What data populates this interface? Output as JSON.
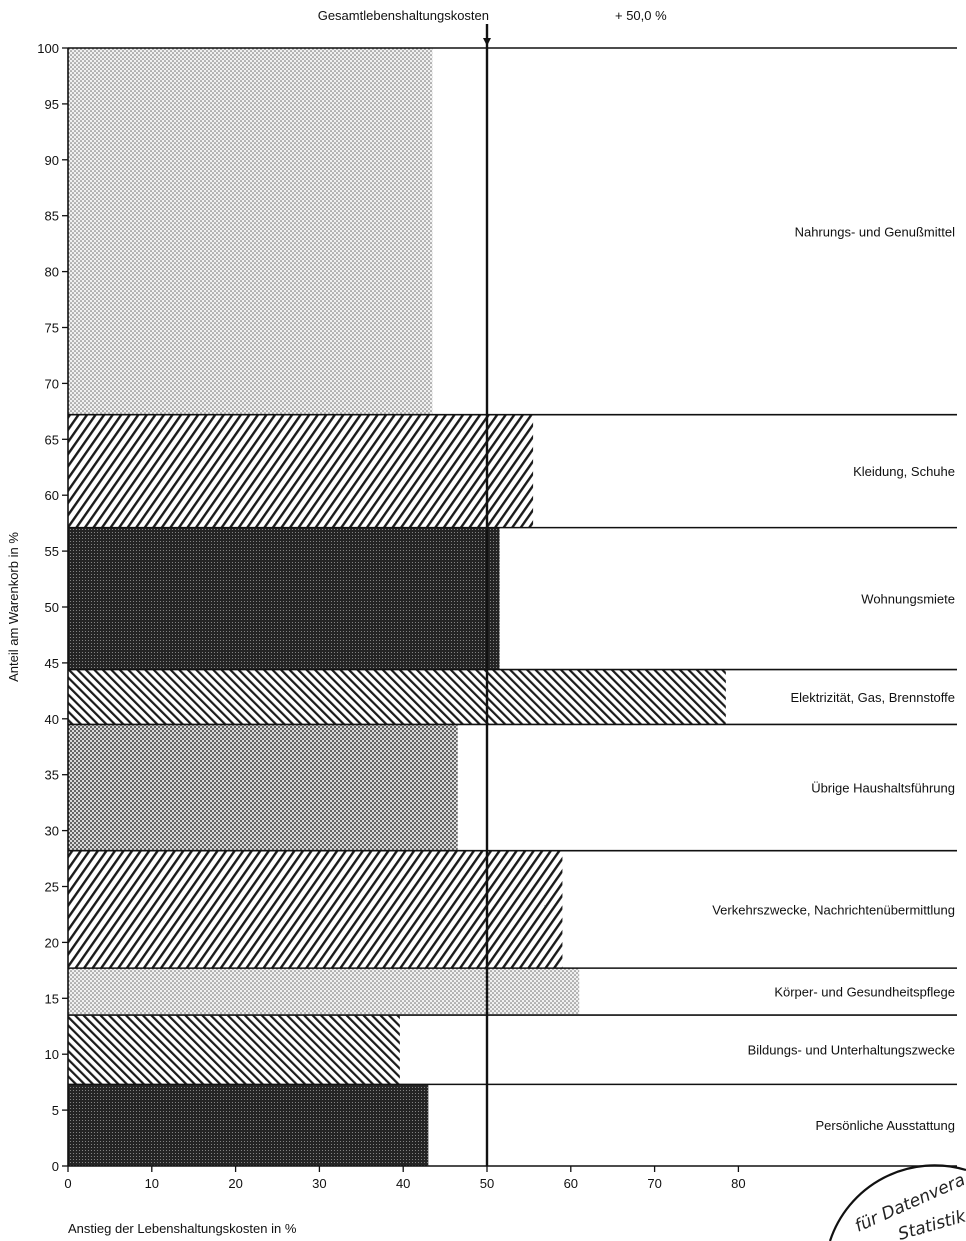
{
  "chart_data": {
    "type": "bar",
    "orientation": "horizontal",
    "bar_style": "variable-width (Marimekko)",
    "xlabel": "Anstieg der Lebenshaltungskosten in %",
    "ylabel": "Anteil am Warenkorb in %",
    "xlim": [
      0,
      80
    ],
    "ylim": [
      0,
      100
    ],
    "x_ticks": [
      "0",
      "10",
      "20",
      "30",
      "40",
      "50",
      "60",
      "70",
      "80"
    ],
    "y_ticks": [
      "0",
      "5",
      "10",
      "15",
      "20",
      "25",
      "30",
      "35",
      "40",
      "45",
      "50",
      "55",
      "60",
      "65",
      "70",
      "75",
      "80",
      "85",
      "90",
      "95",
      "100"
    ],
    "reference_line": {
      "value": 50.0,
      "label": "Gesamtlebenshaltungskosten",
      "value_label": "+ 50,0 %"
    },
    "grid": false,
    "categories": [
      {
        "label": "Persönliche Ausstattung",
        "share_from": 0.0,
        "share_to": 7.3,
        "increase": 43.0,
        "pattern": "dense-dark"
      },
      {
        "label": "Bildungs- und Unterhaltungszwecke",
        "share_from": 7.3,
        "share_to": 13.5,
        "increase": 39.6,
        "pattern": "diag-back"
      },
      {
        "label": "Körper- und Gesundheitspflege",
        "share_from": 13.5,
        "share_to": 17.7,
        "increase": 61.0,
        "pattern": "light-dots"
      },
      {
        "label": "Verkehrszwecke, Nachrichtenübermittlung",
        "share_from": 17.7,
        "share_to": 28.2,
        "increase": 59.0,
        "pattern": "diag-fwd"
      },
      {
        "label": "Übrige Haushaltsführung",
        "share_from": 28.2,
        "share_to": 39.5,
        "increase": 46.5,
        "pattern": "medium-dots"
      },
      {
        "label": "Elektrizität, Gas, Brennstoffe",
        "share_from": 39.5,
        "share_to": 44.4,
        "increase": 78.5,
        "pattern": "diag-back"
      },
      {
        "label": "Wohnungsmiete",
        "share_from": 44.4,
        "share_to": 57.1,
        "increase": 51.5,
        "pattern": "dense-dark"
      },
      {
        "label": "Kleidung, Schuhe",
        "share_from": 57.1,
        "share_to": 67.2,
        "increase": 55.5,
        "pattern": "diag-fwd"
      },
      {
        "label": "Nahrungs- und Genußmittel",
        "share_from": 67.2,
        "share_to": 100.0,
        "increase": 43.5,
        "pattern": "light-dots"
      }
    ]
  },
  "stamp": {
    "line1": "für Datenvera",
    "line2": "Statistik"
  }
}
